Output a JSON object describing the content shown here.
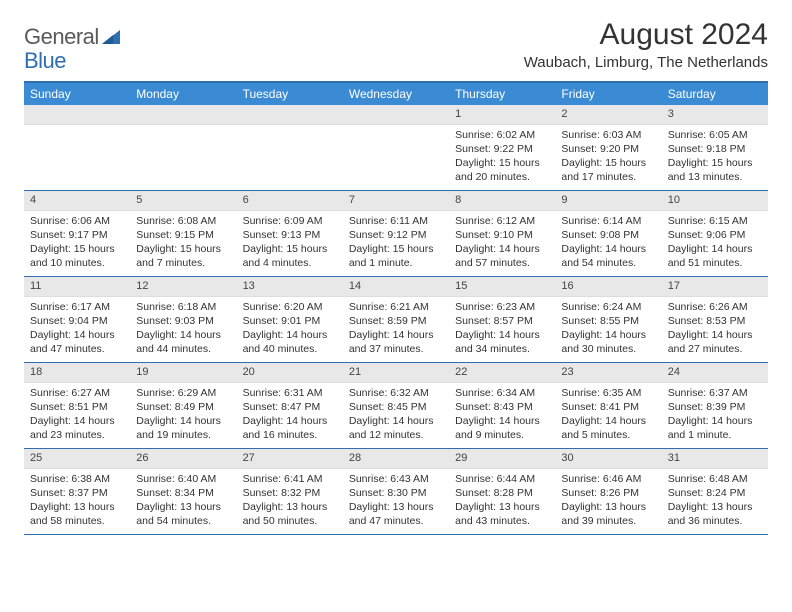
{
  "logo": {
    "text1": "General",
    "text2": "Blue"
  },
  "title": "August 2024",
  "location": "Waubach, Limburg, The Netherlands",
  "colors": {
    "header_bg": "#3b8bd4",
    "border": "#2f6fb0",
    "daynum_bg": "#e8e8e8",
    "text": "#333333"
  },
  "dayHeaders": [
    "Sunday",
    "Monday",
    "Tuesday",
    "Wednesday",
    "Thursday",
    "Friday",
    "Saturday"
  ],
  "leadingEmpty": 4,
  "days": [
    {
      "n": "1",
      "sr": "6:02 AM",
      "ss": "9:22 PM",
      "dl": "15 hours and 20 minutes."
    },
    {
      "n": "2",
      "sr": "6:03 AM",
      "ss": "9:20 PM",
      "dl": "15 hours and 17 minutes."
    },
    {
      "n": "3",
      "sr": "6:05 AM",
      "ss": "9:18 PM",
      "dl": "15 hours and 13 minutes."
    },
    {
      "n": "4",
      "sr": "6:06 AM",
      "ss": "9:17 PM",
      "dl": "15 hours and 10 minutes."
    },
    {
      "n": "5",
      "sr": "6:08 AM",
      "ss": "9:15 PM",
      "dl": "15 hours and 7 minutes."
    },
    {
      "n": "6",
      "sr": "6:09 AM",
      "ss": "9:13 PM",
      "dl": "15 hours and 4 minutes."
    },
    {
      "n": "7",
      "sr": "6:11 AM",
      "ss": "9:12 PM",
      "dl": "15 hours and 1 minute."
    },
    {
      "n": "8",
      "sr": "6:12 AM",
      "ss": "9:10 PM",
      "dl": "14 hours and 57 minutes."
    },
    {
      "n": "9",
      "sr": "6:14 AM",
      "ss": "9:08 PM",
      "dl": "14 hours and 54 minutes."
    },
    {
      "n": "10",
      "sr": "6:15 AM",
      "ss": "9:06 PM",
      "dl": "14 hours and 51 minutes."
    },
    {
      "n": "11",
      "sr": "6:17 AM",
      "ss": "9:04 PM",
      "dl": "14 hours and 47 minutes."
    },
    {
      "n": "12",
      "sr": "6:18 AM",
      "ss": "9:03 PM",
      "dl": "14 hours and 44 minutes."
    },
    {
      "n": "13",
      "sr": "6:20 AM",
      "ss": "9:01 PM",
      "dl": "14 hours and 40 minutes."
    },
    {
      "n": "14",
      "sr": "6:21 AM",
      "ss": "8:59 PM",
      "dl": "14 hours and 37 minutes."
    },
    {
      "n": "15",
      "sr": "6:23 AM",
      "ss": "8:57 PM",
      "dl": "14 hours and 34 minutes."
    },
    {
      "n": "16",
      "sr": "6:24 AM",
      "ss": "8:55 PM",
      "dl": "14 hours and 30 minutes."
    },
    {
      "n": "17",
      "sr": "6:26 AM",
      "ss": "8:53 PM",
      "dl": "14 hours and 27 minutes."
    },
    {
      "n": "18",
      "sr": "6:27 AM",
      "ss": "8:51 PM",
      "dl": "14 hours and 23 minutes."
    },
    {
      "n": "19",
      "sr": "6:29 AM",
      "ss": "8:49 PM",
      "dl": "14 hours and 19 minutes."
    },
    {
      "n": "20",
      "sr": "6:31 AM",
      "ss": "8:47 PM",
      "dl": "14 hours and 16 minutes."
    },
    {
      "n": "21",
      "sr": "6:32 AM",
      "ss": "8:45 PM",
      "dl": "14 hours and 12 minutes."
    },
    {
      "n": "22",
      "sr": "6:34 AM",
      "ss": "8:43 PM",
      "dl": "14 hours and 9 minutes."
    },
    {
      "n": "23",
      "sr": "6:35 AM",
      "ss": "8:41 PM",
      "dl": "14 hours and 5 minutes."
    },
    {
      "n": "24",
      "sr": "6:37 AM",
      "ss": "8:39 PM",
      "dl": "14 hours and 1 minute."
    },
    {
      "n": "25",
      "sr": "6:38 AM",
      "ss": "8:37 PM",
      "dl": "13 hours and 58 minutes."
    },
    {
      "n": "26",
      "sr": "6:40 AM",
      "ss": "8:34 PM",
      "dl": "13 hours and 54 minutes."
    },
    {
      "n": "27",
      "sr": "6:41 AM",
      "ss": "8:32 PM",
      "dl": "13 hours and 50 minutes."
    },
    {
      "n": "28",
      "sr": "6:43 AM",
      "ss": "8:30 PM",
      "dl": "13 hours and 47 minutes."
    },
    {
      "n": "29",
      "sr": "6:44 AM",
      "ss": "8:28 PM",
      "dl": "13 hours and 43 minutes."
    },
    {
      "n": "30",
      "sr": "6:46 AM",
      "ss": "8:26 PM",
      "dl": "13 hours and 39 minutes."
    },
    {
      "n": "31",
      "sr": "6:48 AM",
      "ss": "8:24 PM",
      "dl": "13 hours and 36 minutes."
    }
  ],
  "labels": {
    "sunrise": "Sunrise:",
    "sunset": "Sunset:",
    "daylight": "Daylight:"
  }
}
